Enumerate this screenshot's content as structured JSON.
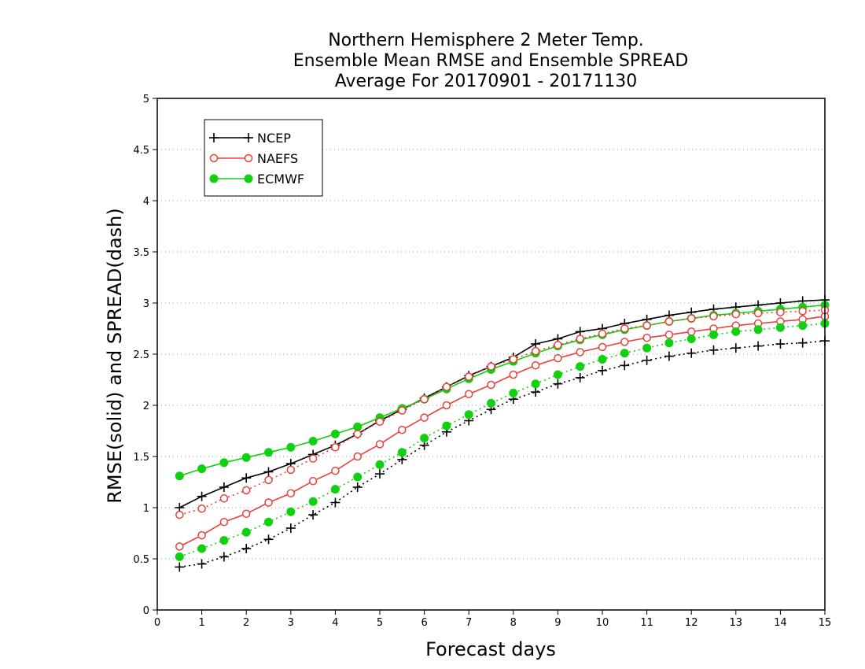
{
  "chart_data": {
    "type": "line",
    "title_lines": [
      "Northern Hemisphere 2 Meter Temp.",
      "Ensemble Mean RMSE and Ensemble SPREAD",
      "Average For 20170901 - 20171130"
    ],
    "xlabel": "Forecast days",
    "ylabel": "RMSE(solid) and SPREAD(dash)",
    "xlim": [
      0,
      15
    ],
    "ylim": [
      0,
      5
    ],
    "xticks": [
      "0",
      "1",
      "2",
      "3",
      "4",
      "5",
      "6",
      "7",
      "8",
      "9",
      "10",
      "11",
      "12",
      "13",
      "14",
      "15"
    ],
    "yticks": [
      "0",
      "0.5",
      "1",
      "1.5",
      "2",
      "2.5",
      "3",
      "3.5",
      "4",
      "4.5",
      "5"
    ],
    "grid": "horizontal dotted",
    "legend_position": "top-left",
    "x": [
      0.5,
      1,
      1.5,
      2,
      2.5,
      3,
      3.5,
      4,
      4.5,
      5,
      5.5,
      6,
      6.5,
      7,
      7.5,
      8,
      8.5,
      9,
      9.5,
      10,
      10.5,
      11,
      11.5,
      12,
      12.5,
      13,
      13.5,
      14,
      14.5,
      15
    ],
    "series": [
      {
        "name": "NCEP",
        "color": "#000000",
        "marker": "plus",
        "style": "solid",
        "legend": true,
        "values": [
          1.0,
          1.11,
          1.2,
          1.29,
          1.35,
          1.43,
          1.52,
          1.61,
          1.72,
          1.85,
          1.96,
          2.07,
          2.18,
          2.29,
          2.38,
          2.47,
          2.6,
          2.65,
          2.72,
          2.75,
          2.8,
          2.84,
          2.88,
          2.91,
          2.94,
          2.96,
          2.98,
          3.0,
          3.02,
          3.03
        ]
      },
      {
        "name": "NAEFS",
        "color": "#e8403a",
        "marker": "open-circle",
        "style": "solid",
        "legend": true,
        "values": [
          0.62,
          0.73,
          0.86,
          0.94,
          1.05,
          1.14,
          1.26,
          1.36,
          1.5,
          1.62,
          1.76,
          1.88,
          2.0,
          2.11,
          2.2,
          2.3,
          2.39,
          2.46,
          2.52,
          2.57,
          2.62,
          2.66,
          2.69,
          2.72,
          2.75,
          2.78,
          2.8,
          2.82,
          2.84,
          2.87
        ]
      },
      {
        "name": "ECMWF",
        "color": "#10d010",
        "marker": "filled-circle",
        "style": "solid",
        "legend": true,
        "values": [
          1.31,
          1.38,
          1.44,
          1.49,
          1.54,
          1.59,
          1.65,
          1.72,
          1.79,
          1.88,
          1.97,
          2.06,
          2.16,
          2.26,
          2.35,
          2.43,
          2.51,
          2.58,
          2.64,
          2.69,
          2.74,
          2.78,
          2.82,
          2.85,
          2.88,
          2.9,
          2.92,
          2.94,
          2.96,
          2.98
        ]
      },
      {
        "name": "NCEP spread",
        "color": "#000000",
        "marker": "plus",
        "style": "dotted",
        "legend": false,
        "values": [
          0.42,
          0.45,
          0.52,
          0.6,
          0.69,
          0.8,
          0.93,
          1.05,
          1.2,
          1.33,
          1.47,
          1.61,
          1.74,
          1.85,
          1.96,
          2.06,
          2.13,
          2.21,
          2.27,
          2.34,
          2.39,
          2.44,
          2.48,
          2.51,
          2.54,
          2.56,
          2.58,
          2.6,
          2.61,
          2.63
        ]
      },
      {
        "name": "NAEFS spread",
        "color": "#e8403a",
        "marker": "open-circle",
        "style": "dotted",
        "legend": false,
        "values": [
          0.93,
          0.99,
          1.09,
          1.17,
          1.27,
          1.37,
          1.48,
          1.59,
          1.72,
          1.84,
          1.95,
          2.06,
          2.18,
          2.28,
          2.38,
          2.45,
          2.53,
          2.59,
          2.65,
          2.7,
          2.75,
          2.78,
          2.82,
          2.85,
          2.87,
          2.89,
          2.9,
          2.91,
          2.92,
          2.93
        ]
      },
      {
        "name": "ECMWF spread",
        "color": "#10d010",
        "marker": "filled-circle",
        "style": "dotted",
        "legend": false,
        "values": [
          0.52,
          0.6,
          0.68,
          0.76,
          0.86,
          0.96,
          1.06,
          1.18,
          1.3,
          1.42,
          1.54,
          1.68,
          1.8,
          1.91,
          2.02,
          2.12,
          2.21,
          2.3,
          2.38,
          2.45,
          2.51,
          2.56,
          2.61,
          2.65,
          2.69,
          2.72,
          2.74,
          2.76,
          2.78,
          2.8
        ]
      }
    ]
  }
}
